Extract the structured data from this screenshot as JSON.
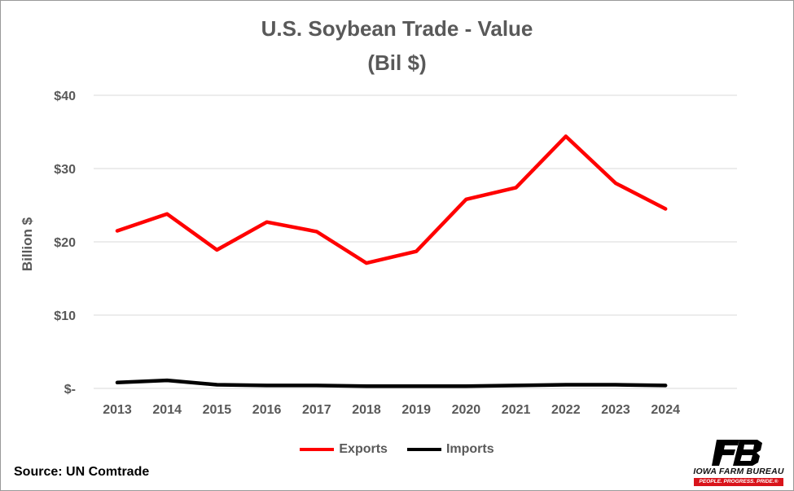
{
  "chart_data": {
    "type": "line",
    "title": "U.S. Soybean Trade - Value",
    "subtitle": "(Bil $)",
    "xlabel": "",
    "ylabel": "Billion $",
    "categories": [
      "2013",
      "2014",
      "2015",
      "2016",
      "2017",
      "2018",
      "2019",
      "2020",
      "2021",
      "2022",
      "2023",
      "2024"
    ],
    "ylim": [
      0,
      40
    ],
    "yticks": [
      {
        "value": 0,
        "label": "$-"
      },
      {
        "value": 10,
        "label": "$10"
      },
      {
        "value": 20,
        "label": "$20"
      },
      {
        "value": 30,
        "label": "$30"
      },
      {
        "value": 40,
        "label": "$40"
      }
    ],
    "grid": true,
    "legend_position": "bottom",
    "series": [
      {
        "name": "Exports",
        "color": "#ff0000",
        "values": [
          21.5,
          23.8,
          18.9,
          22.7,
          21.4,
          17.1,
          18.7,
          25.8,
          27.4,
          34.4,
          28.0,
          24.5
        ]
      },
      {
        "name": "Imports",
        "color": "#000000",
        "values": [
          0.8,
          1.1,
          0.5,
          0.4,
          0.4,
          0.3,
          0.3,
          0.3,
          0.4,
          0.5,
          0.5,
          0.4
        ]
      }
    ]
  },
  "source": "Source: UN Comtrade",
  "logo": {
    "name": "IOWA FARM BUREAU",
    "tagline": "PEOPLE. PROGRESS. PRIDE.®",
    "colors": {
      "mark": "#000000",
      "accent": "#d9141b"
    }
  }
}
